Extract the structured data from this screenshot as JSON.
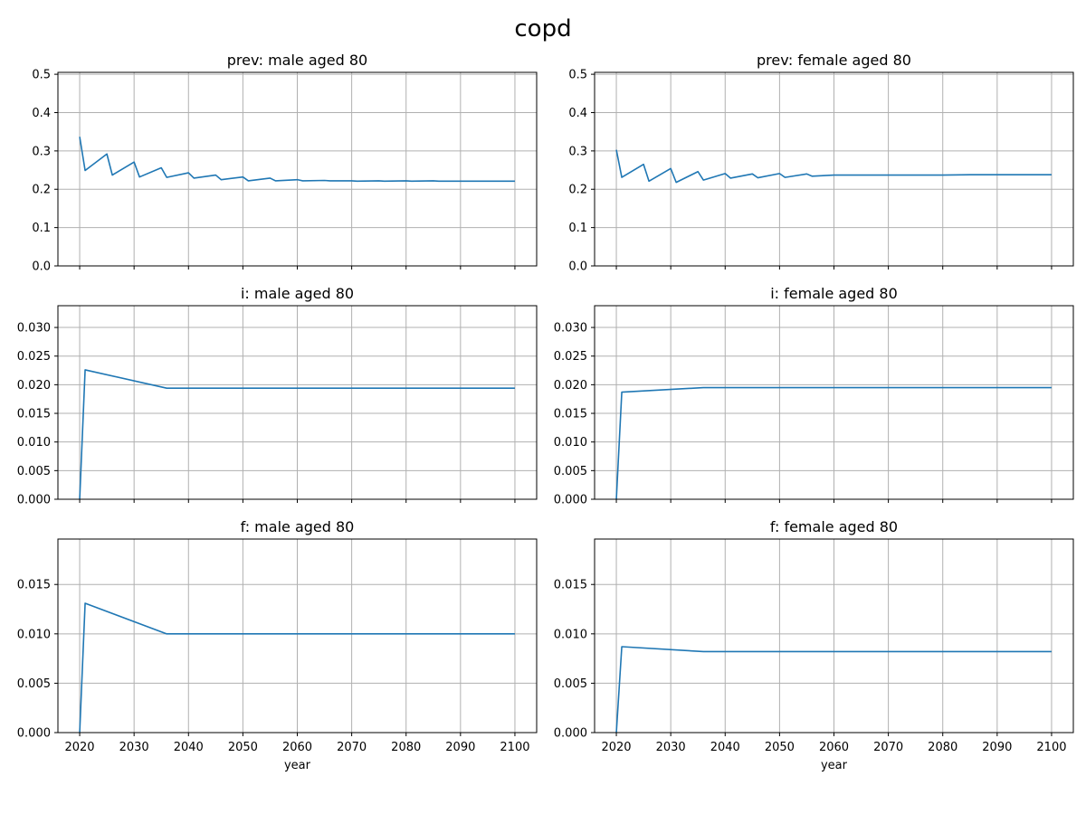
{
  "title": "copd",
  "colors": {
    "line": "#1f77b4",
    "grid": "#b0b0b0",
    "axes": "#000000"
  },
  "chart_data": [
    {
      "type": "line",
      "title": "prev: male aged 80",
      "xlabel": "",
      "ylabel": "",
      "xlim": [
        2016,
        2104
      ],
      "ylim": [
        0,
        0.505
      ],
      "grid": true,
      "xticks": [
        2020,
        2030,
        2040,
        2050,
        2060,
        2070,
        2080,
        2090,
        2100
      ],
      "show_xtick_labels": false,
      "yticks": [
        0.0,
        0.1,
        0.2,
        0.3,
        0.4,
        0.5
      ],
      "ytick_labels": [
        "0.0",
        "0.1",
        "0.2",
        "0.3",
        "0.4",
        "0.5"
      ],
      "series": [
        {
          "x": [
            2020,
            2021,
            2025,
            2026,
            2030,
            2031,
            2035,
            2036,
            2040,
            2041,
            2045,
            2046,
            2050,
            2051,
            2055,
            2056,
            2060,
            2061,
            2065,
            2066,
            2070,
            2071,
            2075,
            2076,
            2080,
            2081,
            2085,
            2086,
            2090,
            2091,
            2095,
            2096,
            2100
          ],
          "y": [
            0.337,
            0.249,
            0.292,
            0.237,
            0.271,
            0.232,
            0.256,
            0.231,
            0.243,
            0.229,
            0.237,
            0.225,
            0.232,
            0.222,
            0.229,
            0.222,
            0.225,
            0.222,
            0.223,
            0.222,
            0.222,
            0.221,
            0.222,
            0.221,
            0.222,
            0.221,
            0.222,
            0.221,
            0.221,
            0.221,
            0.221,
            0.221,
            0.221
          ]
        }
      ]
    },
    {
      "type": "line",
      "title": "prev: female aged 80",
      "xlabel": "",
      "ylabel": "",
      "xlim": [
        2016,
        2104
      ],
      "ylim": [
        0,
        0.505
      ],
      "grid": true,
      "xticks": [
        2020,
        2030,
        2040,
        2050,
        2060,
        2070,
        2080,
        2090,
        2100
      ],
      "show_xtick_labels": false,
      "yticks": [
        0.0,
        0.1,
        0.2,
        0.3,
        0.4,
        0.5
      ],
      "ytick_labels": [
        "0.0",
        "0.1",
        "0.2",
        "0.3",
        "0.4",
        "0.5"
      ],
      "series": [
        {
          "x": [
            2020,
            2021,
            2025,
            2026,
            2030,
            2031,
            2035,
            2036,
            2040,
            2041,
            2045,
            2046,
            2050,
            2051,
            2055,
            2056,
            2060,
            2065,
            2070,
            2075,
            2080,
            2085,
            2090,
            2095,
            2100
          ],
          "y": [
            0.303,
            0.231,
            0.265,
            0.221,
            0.254,
            0.218,
            0.246,
            0.224,
            0.241,
            0.229,
            0.24,
            0.23,
            0.241,
            0.231,
            0.24,
            0.234,
            0.237,
            0.237,
            0.237,
            0.237,
            0.237,
            0.238,
            0.238,
            0.238,
            0.238
          ]
        }
      ]
    },
    {
      "type": "line",
      "title": "i: male aged 80",
      "xlabel": "",
      "ylabel": "",
      "xlim": [
        2016,
        2104
      ],
      "ylim": [
        0,
        0.0338
      ],
      "grid": true,
      "xticks": [
        2020,
        2030,
        2040,
        2050,
        2060,
        2070,
        2080,
        2090,
        2100
      ],
      "show_xtick_labels": false,
      "yticks": [
        0.0,
        0.005,
        0.01,
        0.015,
        0.02,
        0.025,
        0.03
      ],
      "ytick_labels": [
        "0.000",
        "0.005",
        "0.010",
        "0.015",
        "0.020",
        "0.025",
        "0.030"
      ],
      "series": [
        {
          "x": [
            2020,
            2021,
            2036,
            2100
          ],
          "y": [
            0.0,
            0.0226,
            0.0194,
            0.0194
          ]
        }
      ]
    },
    {
      "type": "line",
      "title": "i: female aged 80",
      "xlabel": "",
      "ylabel": "",
      "xlim": [
        2016,
        2104
      ],
      "ylim": [
        0,
        0.0338
      ],
      "grid": true,
      "xticks": [
        2020,
        2030,
        2040,
        2050,
        2060,
        2070,
        2080,
        2090,
        2100
      ],
      "show_xtick_labels": false,
      "yticks": [
        0.0,
        0.005,
        0.01,
        0.015,
        0.02,
        0.025,
        0.03
      ],
      "ytick_labels": [
        "0.000",
        "0.005",
        "0.010",
        "0.015",
        "0.020",
        "0.025",
        "0.030"
      ],
      "series": [
        {
          "x": [
            2020,
            2021,
            2036,
            2100
          ],
          "y": [
            0.0,
            0.0187,
            0.0195,
            0.0195
          ]
        }
      ]
    },
    {
      "type": "line",
      "title": "f: male aged 80",
      "xlabel": "year",
      "ylabel": "",
      "xlim": [
        2016,
        2104
      ],
      "ylim": [
        0,
        0.0196
      ],
      "grid": true,
      "xticks": [
        2020,
        2030,
        2040,
        2050,
        2060,
        2070,
        2080,
        2090,
        2100
      ],
      "show_xtick_labels": true,
      "xtick_labels": [
        "2020",
        "2030",
        "2040",
        "2050",
        "2060",
        "2070",
        "2080",
        "2090",
        "2100"
      ],
      "yticks": [
        0.0,
        0.005,
        0.01,
        0.015
      ],
      "ytick_labels": [
        "0.000",
        "0.005",
        "0.010",
        "0.015"
      ],
      "series": [
        {
          "x": [
            2020,
            2021,
            2036,
            2100
          ],
          "y": [
            0.0,
            0.0131,
            0.01,
            0.01
          ]
        }
      ]
    },
    {
      "type": "line",
      "title": "f: female aged 80",
      "xlabel": "year",
      "ylabel": "",
      "xlim": [
        2016,
        2104
      ],
      "ylim": [
        0,
        0.0196
      ],
      "grid": true,
      "xticks": [
        2020,
        2030,
        2040,
        2050,
        2060,
        2070,
        2080,
        2090,
        2100
      ],
      "show_xtick_labels": true,
      "xtick_labels": [
        "2020",
        "2030",
        "2040",
        "2050",
        "2060",
        "2070",
        "2080",
        "2090",
        "2100"
      ],
      "yticks": [
        0.0,
        0.005,
        0.01,
        0.015
      ],
      "ytick_labels": [
        "0.000",
        "0.005",
        "0.010",
        "0.015"
      ],
      "series": [
        {
          "x": [
            2020,
            2021,
            2036,
            2100
          ],
          "y": [
            0.0,
            0.0087,
            0.0082,
            0.0082
          ]
        }
      ]
    }
  ]
}
